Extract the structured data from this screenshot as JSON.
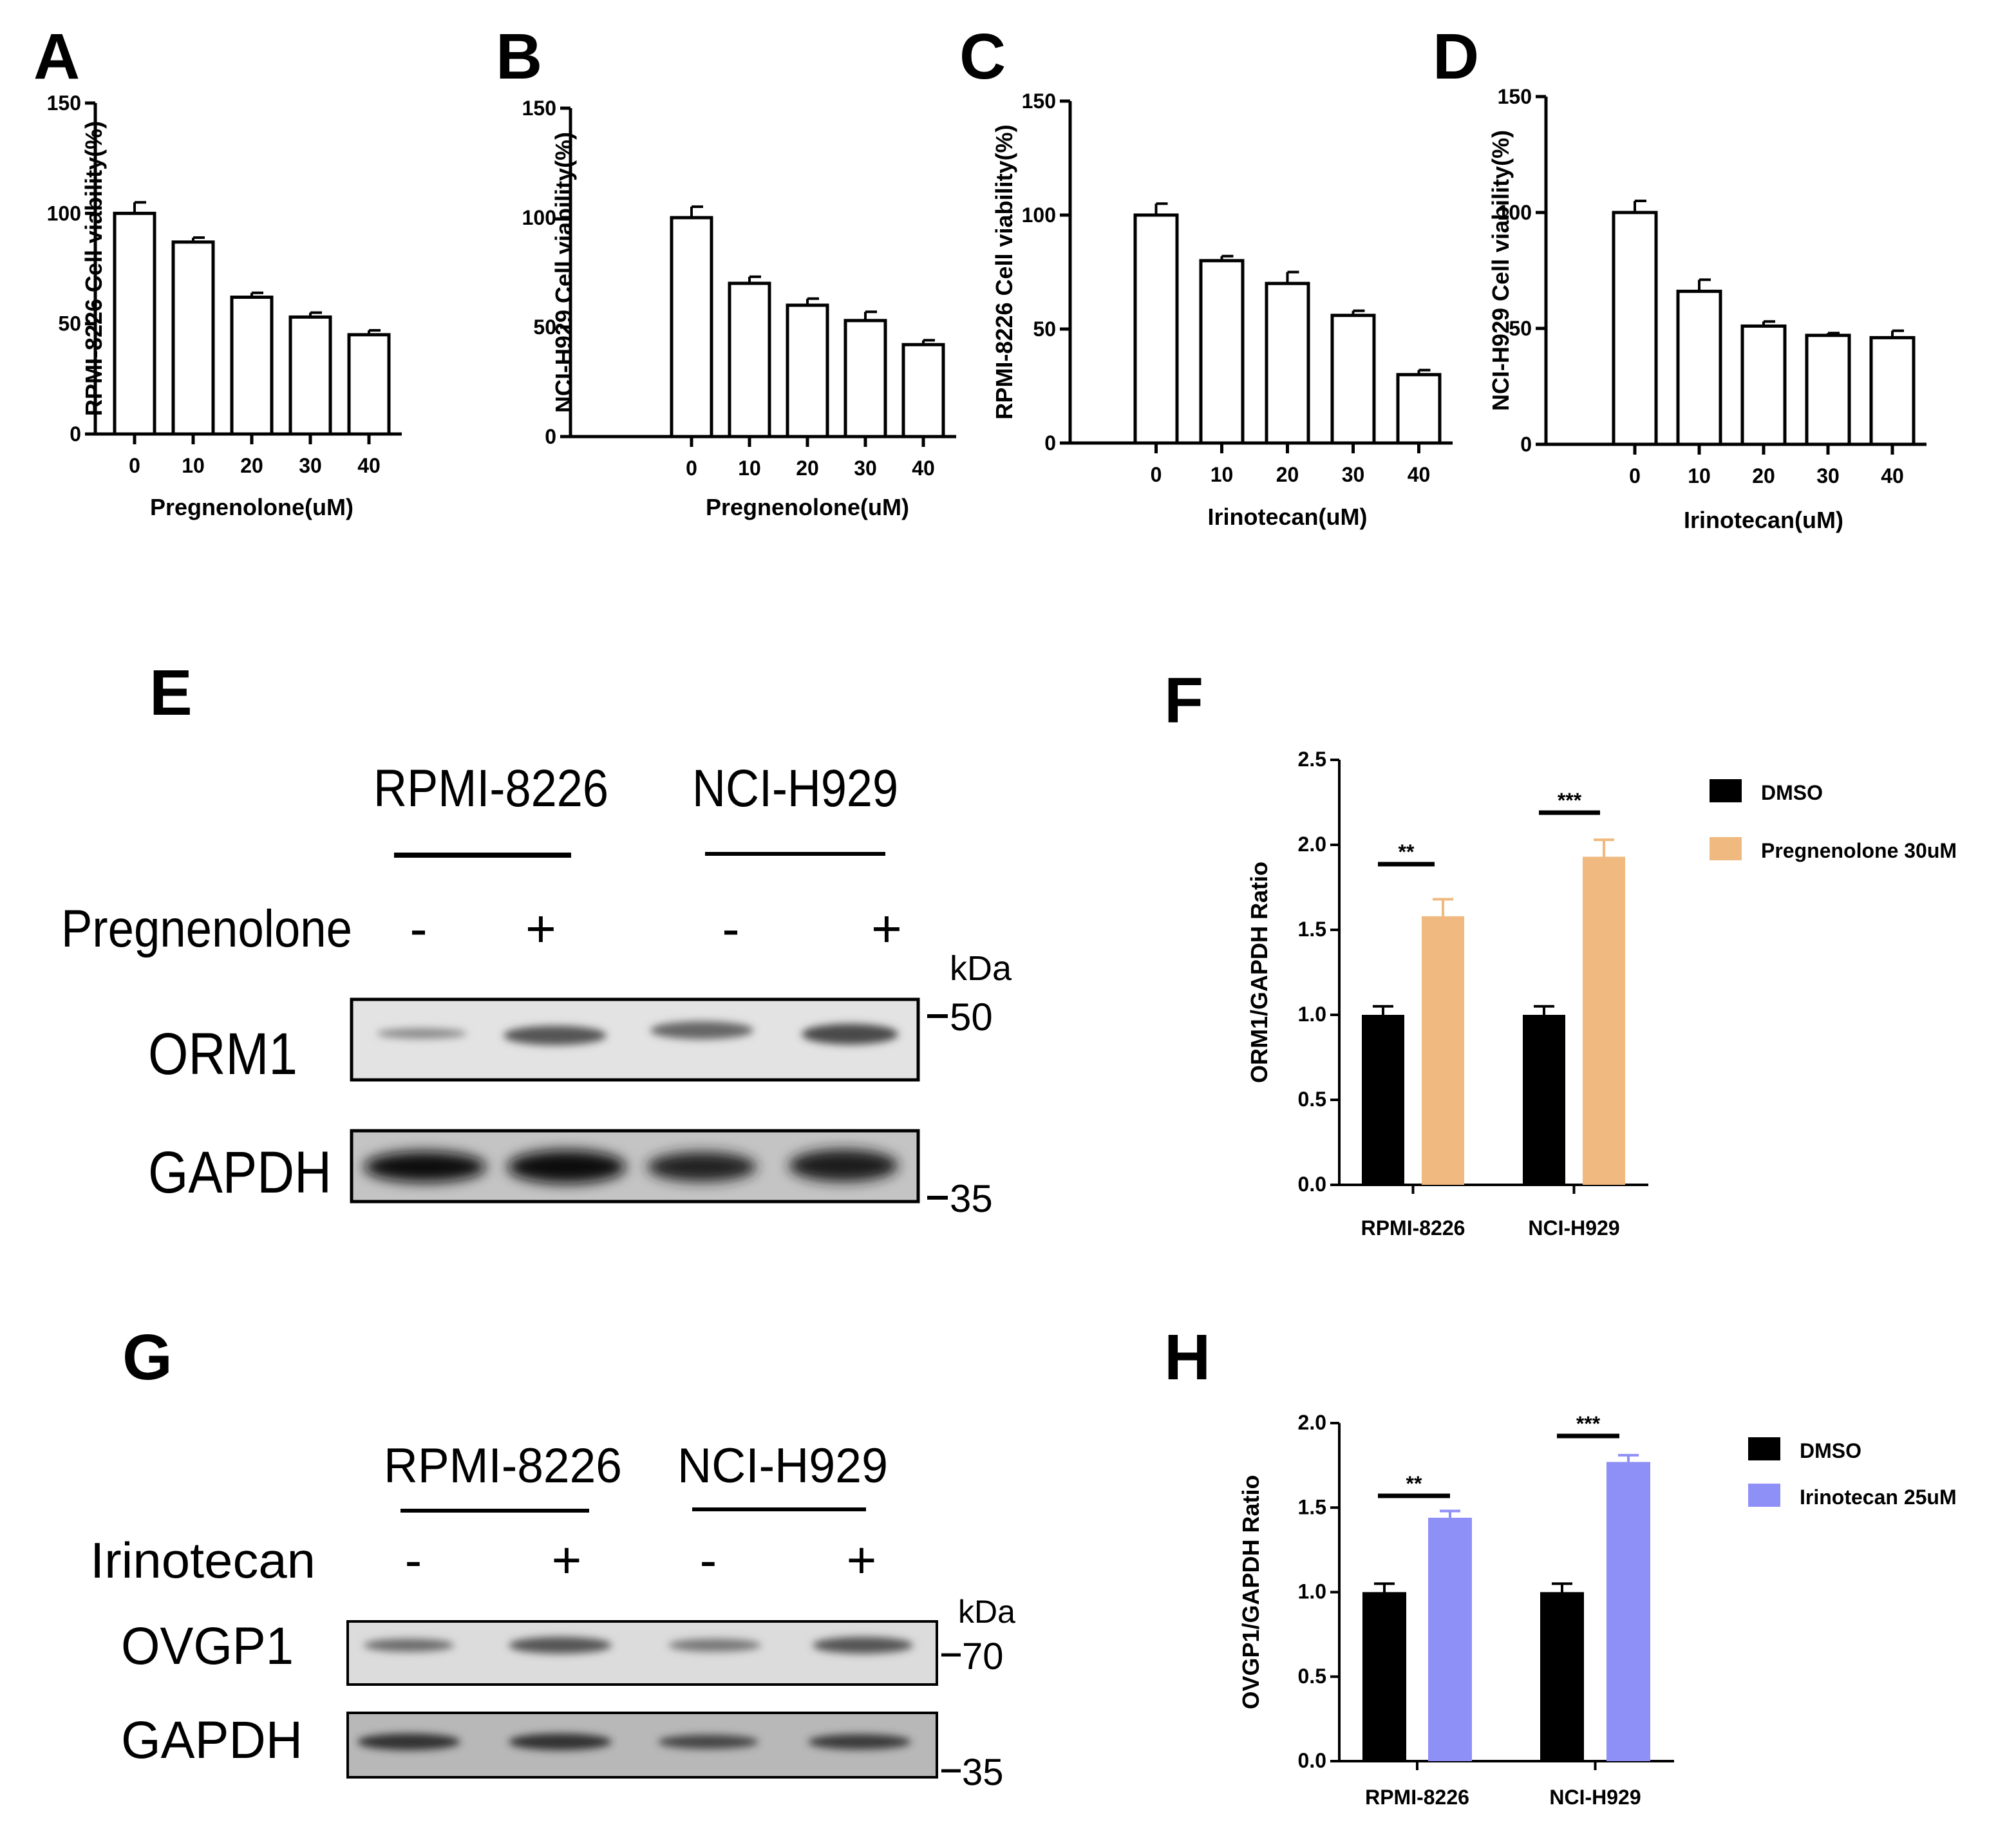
{
  "panel_letters": {
    "A": "A",
    "B": "B",
    "C": "C",
    "D": "D",
    "E": "E",
    "F": "F",
    "G": "G",
    "H": "H"
  },
  "chart_data": [
    {
      "id": "A",
      "type": "bar",
      "categories": [
        "0",
        "10",
        "20",
        "30",
        "40"
      ],
      "values": [
        100,
        87,
        62,
        53,
        45
      ],
      "errors": [
        5,
        2,
        2,
        2,
        2
      ],
      "xlabel": "Pregnenolone(uM)",
      "ylabel": "RPMI-8226 Cell viability(%)",
      "ylim": [
        0,
        150
      ],
      "yticks": [
        "0",
        "50",
        "100",
        "150"
      ]
    },
    {
      "id": "B",
      "type": "bar",
      "categories": [
        "0",
        "10",
        "20",
        "30",
        "40"
      ],
      "values": [
        100,
        70,
        60,
        53,
        42
      ],
      "errors": [
        5,
        3,
        3,
        4,
        2
      ],
      "xlabel": "Pregnenolone(uM)",
      "ylabel": "NCI-H929 Cell viability(%)",
      "ylim": [
        0,
        150
      ],
      "yticks": [
        "0",
        "50",
        "100",
        "150"
      ]
    },
    {
      "id": "C",
      "type": "bar",
      "categories": [
        "0",
        "10",
        "20",
        "30",
        "40"
      ],
      "values": [
        100,
        80,
        70,
        56,
        30
      ],
      "errors": [
        5,
        2,
        5,
        2,
        2
      ],
      "xlabel": "Irinotecan(uM)",
      "ylabel": "RPMI-8226 Cell viability(%)",
      "ylim": [
        0,
        150
      ],
      "yticks": [
        "0",
        "50",
        "100",
        "150"
      ]
    },
    {
      "id": "D",
      "type": "bar",
      "categories": [
        "0",
        "10",
        "20",
        "30",
        "40"
      ],
      "values": [
        100,
        66,
        51,
        47,
        46
      ],
      "errors": [
        5,
        5,
        2,
        1,
        3
      ],
      "xlabel": "Irinotecan(uM)",
      "ylabel": "NCI-H929 Cell viability(%)",
      "ylim": [
        0,
        150
      ],
      "yticks": [
        "0",
        "50",
        "100",
        "150"
      ]
    },
    {
      "id": "F",
      "type": "bar",
      "categories": [
        "RPMI-8226",
        "NCI-H929"
      ],
      "series": [
        {
          "name": "DMSO",
          "values": [
            1.0,
            1.0
          ],
          "errors": [
            0.05,
            0.05
          ],
          "color": "#000000"
        },
        {
          "name": "Pregnenolone 30uM",
          "values": [
            1.58,
            1.93
          ],
          "errors": [
            0.1,
            0.1
          ],
          "color": "#f0b97f"
        }
      ],
      "significance": [
        "**",
        "***"
      ],
      "ylabel": "ORM1/GAPDH Ratio",
      "ylim": [
        0,
        2.5
      ],
      "yticks": [
        "0.0",
        "0.5",
        "1.0",
        "1.5",
        "2.0",
        "2.5"
      ]
    },
    {
      "id": "H",
      "type": "bar",
      "categories": [
        "RPMI-8226",
        "NCI-H929"
      ],
      "series": [
        {
          "name": "DMSO",
          "values": [
            1.0,
            1.0
          ],
          "errors": [
            0.05,
            0.05
          ],
          "color": "#000000"
        },
        {
          "name": "Irinotecan 25uM",
          "values": [
            1.44,
            1.77
          ],
          "errors": [
            0.04,
            0.04
          ],
          "color": "#8f8ff8"
        }
      ],
      "significance": [
        "**",
        "***"
      ],
      "ylabel": "OVGP1/GAPDH Ratio",
      "ylim": [
        0,
        2.0
      ],
      "yticks": [
        "0.0",
        "0.5",
        "1.0",
        "1.5",
        "2.0"
      ]
    }
  ],
  "western_E": {
    "cell_line_1": "RPMI-8226",
    "cell_line_2": "NCI-H929",
    "treatment": "Pregnenolone",
    "signs": [
      "-",
      "+",
      "-",
      "+"
    ],
    "kda": "kDa",
    "protein_1": "ORM1",
    "protein_2": "GAPDH",
    "marker_1": "50",
    "marker_2": "35"
  },
  "western_G": {
    "cell_line_1": "RPMI-8226",
    "cell_line_2": "NCI-H929",
    "treatment": "Irinotecan",
    "signs": [
      "-",
      "+",
      "-",
      "+"
    ],
    "kda": "kDa",
    "protein_1": "OVGP1",
    "protein_2": "GAPDH",
    "marker_1": "70",
    "marker_2": "35"
  }
}
